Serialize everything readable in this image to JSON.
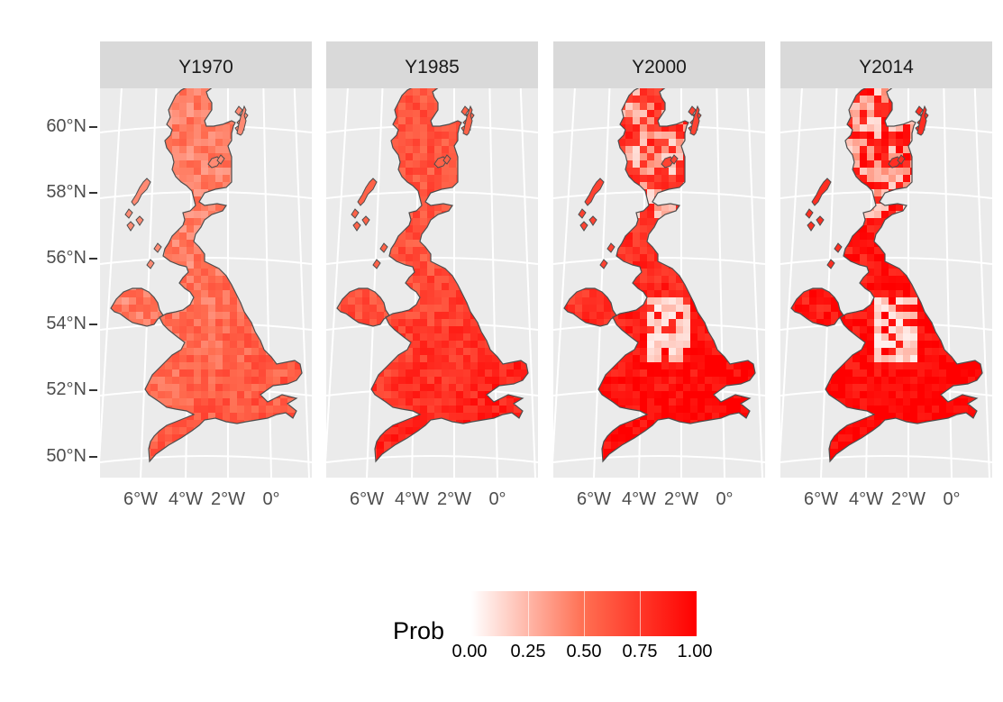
{
  "panels": [
    {
      "title": "Y1970",
      "mean_prob": 0.45,
      "hot_prob": 0.6
    },
    {
      "title": "Y1985",
      "mean_prob": 0.62,
      "hot_prob": 0.85
    },
    {
      "title": "Y2000",
      "mean_prob": 0.78,
      "hot_prob": 0.98
    },
    {
      "title": "Y2014",
      "mean_prob": 0.88,
      "hot_prob": 1.0
    }
  ],
  "y_axis": {
    "ticks": [
      "60°N",
      "58°N",
      "56°N",
      "54°N",
      "52°N",
      "50°N"
    ]
  },
  "x_axis": {
    "ticks": [
      "6°W",
      "4°W",
      "2°W",
      "0°"
    ]
  },
  "legend": {
    "title": "Prob",
    "labels": [
      "0.00",
      "0.25",
      "0.50",
      "0.75",
      "1.00"
    ],
    "low_color": "#ffffff",
    "high_color": "#ff0000"
  },
  "colors": {
    "panel_background": "#ebebeb",
    "strip_background": "#d9d9d9",
    "grid": "#ffffff",
    "outline": "#4d4d4d"
  }
}
